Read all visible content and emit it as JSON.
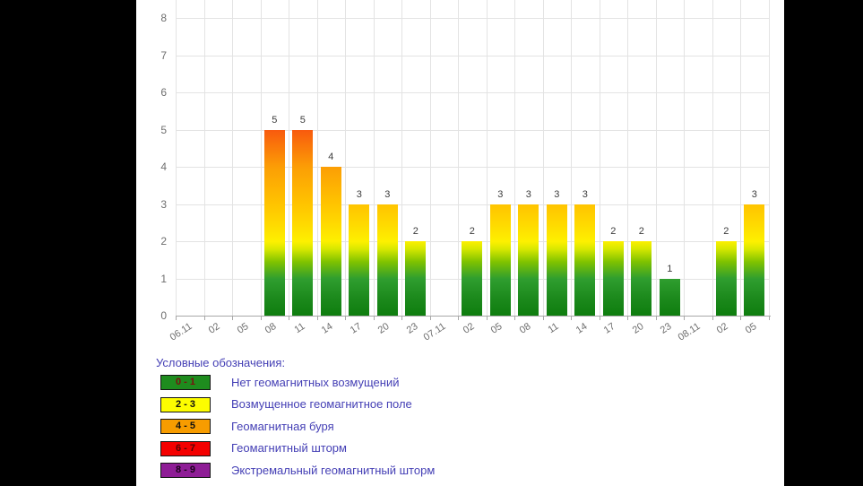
{
  "panel_background": "#ffffff",
  "page_background": "#000000",
  "chart_data": {
    "type": "bar",
    "title": "",
    "xlabel": "",
    "ylabel": "",
    "ylim": [
      0,
      8
    ],
    "yticks": [
      0,
      1,
      2,
      3,
      4,
      5,
      6,
      7,
      8
    ],
    "grid": true,
    "legend_position": "bottom-left",
    "categories": [
      "06.11",
      "02",
      "05",
      "08",
      "11",
      "14",
      "17",
      "20",
      "23",
      "07.11",
      "02",
      "05",
      "08",
      "11",
      "14",
      "17",
      "20",
      "23",
      "08.11",
      "02",
      "05"
    ],
    "values": [
      null,
      null,
      null,
      5,
      5,
      4,
      3,
      3,
      2,
      null,
      2,
      3,
      3,
      3,
      3,
      2,
      2,
      1,
      null,
      2,
      3
    ],
    "bar_value_labels_shown": true,
    "color_scale": [
      {
        "value": 0,
        "color": "#0e7d0e"
      },
      {
        "value": 0.5,
        "color": "#1d8a1d"
      },
      {
        "value": 1,
        "color": "#2f9e2f"
      },
      {
        "value": 1.45,
        "color": "#7fc200"
      },
      {
        "value": 1.8,
        "color": "#d8e800"
      },
      {
        "value": 2,
        "color": "#fdf000"
      },
      {
        "value": 2.5,
        "color": "#ffd800"
      },
      {
        "value": 3,
        "color": "#ffc400"
      },
      {
        "value": 4,
        "color": "#fc9e05"
      },
      {
        "value": 5,
        "color": "#f85a0e"
      },
      {
        "value": 6,
        "color": "#f00000"
      },
      {
        "value": 7,
        "color": "#e80000"
      },
      {
        "value": 8,
        "color": "#8e1d96"
      }
    ]
  },
  "legend": {
    "title": "Условные обозначения:",
    "items": [
      {
        "range": "0 - 1",
        "color": "#1e8c1e",
        "text_color": "#7a1010",
        "label": "Нет геомагнитных возмущений"
      },
      {
        "range": "2 - 3",
        "color": "#fdfd00",
        "text_color": "#111111",
        "label": "Возмущенное геомагнитное поле"
      },
      {
        "range": "4 - 5",
        "color": "#f79c00",
        "text_color": "#111111",
        "label": "Геомагнитная буря"
      },
      {
        "range": "6 - 7",
        "color": "#f40000",
        "text_color": "#550505",
        "label": "Геомагнитный шторм"
      },
      {
        "range": "8 - 9",
        "color": "#8e1d96",
        "text_color": "#1a021a",
        "label": "Экстремальный геомагнитный шторм"
      }
    ]
  }
}
